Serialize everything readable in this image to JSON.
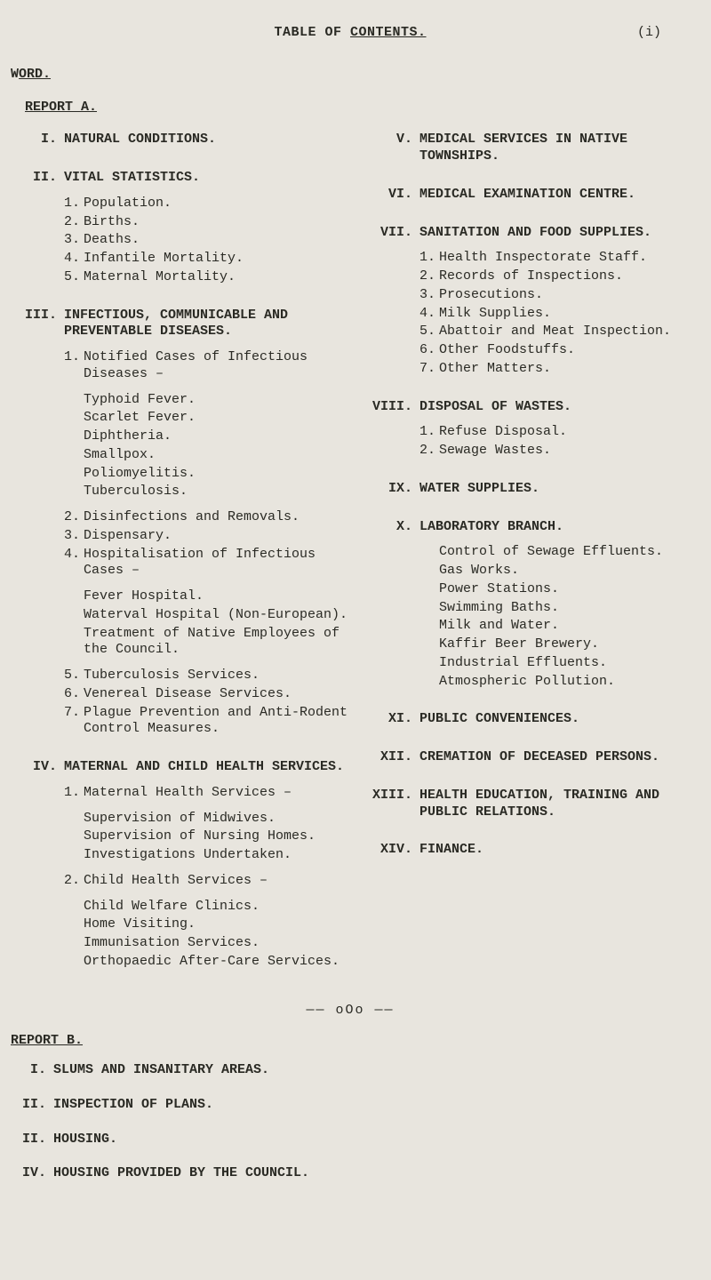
{
  "page_marker": "(i)",
  "title_prefix": "TABLE OF ",
  "title_main": "CONTENTS.",
  "word_prefix": "W",
  "word_main": "ORD.",
  "report_a_label": "REPORT A.",
  "report_b_label": "REPORT B.",
  "separator": "—— oOo ——",
  "colors": {
    "background": "#e8e5de",
    "text": "#2a2a24"
  },
  "typography": {
    "font_family": "Courier New, Courier, monospace",
    "body_fontsize_pt": 11,
    "title_fontsize_pt": 11
  },
  "left_sections": [
    {
      "num": "I.",
      "title": "NATURAL CONDITIONS."
    },
    {
      "num": "II.",
      "title": "VITAL STATISTICS.",
      "items": [
        {
          "n": "1.",
          "t": "Population."
        },
        {
          "n": "2.",
          "t": "Births."
        },
        {
          "n": "3.",
          "t": "Deaths."
        },
        {
          "n": "4.",
          "t": "Infantile Mortality."
        },
        {
          "n": "5.",
          "t": "Maternal Mortality."
        }
      ]
    },
    {
      "num": "III.",
      "title": "INFECTIOUS, COMMUNICABLE AND PREVENTABLE DISEASES.",
      "groups": [
        {
          "header": {
            "n": "1.",
            "t": "Notified Cases of Infectious Diseases –"
          },
          "sub": [
            "Typhoid Fever.",
            "Scarlet Fever.",
            "Diphtheria.",
            "Smallpox.",
            "Poliomyelitis.",
            "Tuberculosis."
          ]
        },
        {
          "items": [
            {
              "n": "2.",
              "t": "Disinfections and Removals."
            },
            {
              "n": "3.",
              "t": "Dispensary."
            },
            {
              "n": "4.",
              "t": "Hospitalisation of Infectious Cases –"
            }
          ],
          "sub": [
            "Fever Hospital.",
            "Waterval Hospital (Non-European).",
            "Treatment of Native Employees of the Council."
          ]
        },
        {
          "items": [
            {
              "n": "5.",
              "t": "Tuberculosis Services."
            },
            {
              "n": "6.",
              "t": "Venereal Disease Services."
            },
            {
              "n": "7.",
              "t": "Plague Prevention and Anti-Rodent Control Measures."
            }
          ]
        }
      ]
    },
    {
      "num": "IV.",
      "title": "MATERNAL AND CHILD HEALTH SERVICES.",
      "groups": [
        {
          "header": {
            "n": "1.",
            "t": "Maternal Health Services –"
          },
          "sub": [
            "Supervision of Midwives.",
            "Supervision of Nursing Homes.",
            "Investigations Undertaken."
          ]
        },
        {
          "header": {
            "n": "2.",
            "t": "Child Health Services –"
          },
          "sub": [
            "Child Welfare Clinics.",
            "Home Visiting.",
            "Immunisation Services.",
            "Orthopaedic After-Care Services."
          ]
        }
      ]
    }
  ],
  "right_sections": [
    {
      "num": "V.",
      "title": "MEDICAL SERVICES IN NATIVE TOWNSHIPS."
    },
    {
      "num": "VI.",
      "title": "MEDICAL EXAMINATION CENTRE."
    },
    {
      "num": "VII.",
      "title": "SANITATION AND FOOD SUPPLIES.",
      "items": [
        {
          "n": "1.",
          "t": "Health Inspectorate Staff."
        },
        {
          "n": "2.",
          "t": "Records of Inspections."
        },
        {
          "n": "3.",
          "t": "Prosecutions."
        },
        {
          "n": "4.",
          "t": "Milk Supplies."
        },
        {
          "n": "5.",
          "t": "Abattoir and Meat Inspection."
        },
        {
          "n": "6.",
          "t": "Other Foodstuffs."
        },
        {
          "n": "7.",
          "t": "Other Matters."
        }
      ]
    },
    {
      "num": "VIII.",
      "title": "DISPOSAL OF WASTES.",
      "items": [
        {
          "n": "1.",
          "t": "Refuse Disposal."
        },
        {
          "n": "2.",
          "t": "Sewage Wastes."
        }
      ]
    },
    {
      "num": "IX.",
      "title": "WATER SUPPLIES."
    },
    {
      "num": "X.",
      "title": "LABORATORY BRANCH.",
      "sub": [
        "Control of Sewage Effluents.",
        "Gas Works.",
        "Power Stations.",
        "Swimming Baths.",
        "Milk and Water.",
        "Kaffir Beer Brewery.",
        "Industrial Effluents.",
        "Atmospheric Pollution."
      ]
    },
    {
      "num": "XI.",
      "title": "PUBLIC CONVENIENCES."
    },
    {
      "num": "XII.",
      "title": "CREMATION OF DECEASED PERSONS."
    },
    {
      "num": "XIII.",
      "title": "HEALTH EDUCATION, TRAINING AND PUBLIC RELATIONS."
    },
    {
      "num": "XIV.",
      "title": "FINANCE."
    }
  ],
  "report_b": [
    {
      "num": "I.",
      "title": "SLUMS AND INSANITARY AREAS."
    },
    {
      "num": "II.",
      "title": "INSPECTION OF PLANS."
    },
    {
      "num": "II.",
      "title": "HOUSING."
    },
    {
      "num": "IV.",
      "title": "HOUSING PROVIDED BY THE COUNCIL."
    }
  ]
}
